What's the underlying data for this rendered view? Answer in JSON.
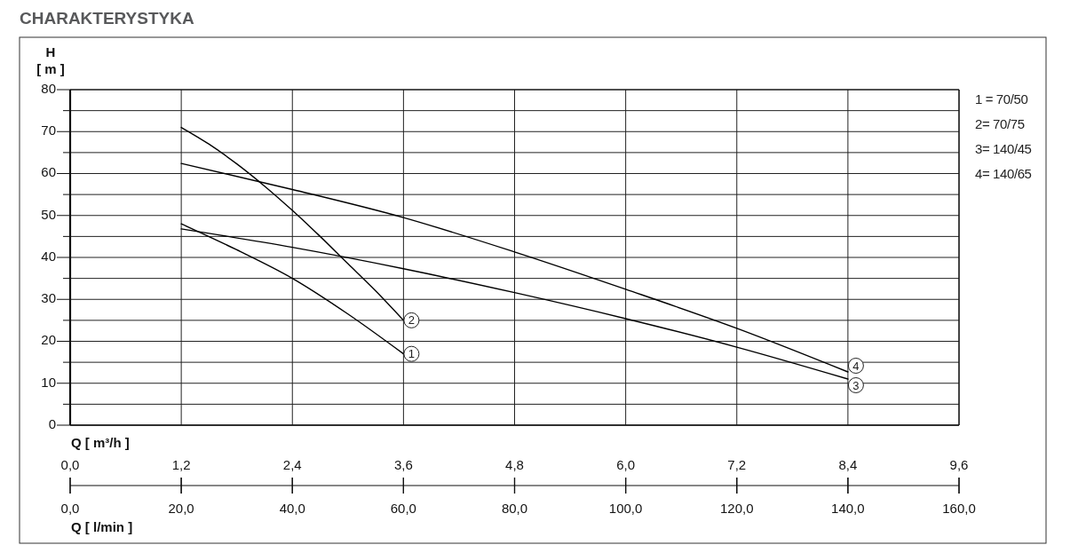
{
  "chart_data": {
    "type": "line",
    "title": "CHARAKTERYSTYKA",
    "xlabel": "Q [ l/min ]",
    "x2label": "Q [ m³/h ]",
    "ylabel": "H\n[ m ]",
    "xlim": [
      0,
      160
    ],
    "xticks": [
      {
        "value": 0,
        "label": "0,0"
      },
      {
        "value": 20,
        "label": "20,0"
      },
      {
        "value": 40,
        "label": "40,0"
      },
      {
        "value": 60,
        "label": "60,0"
      },
      {
        "value": 80,
        "label": "80,0"
      },
      {
        "value": 100,
        "label": "100,0"
      },
      {
        "value": 120,
        "label": "120,0"
      },
      {
        "value": 140,
        "label": "140,0"
      },
      {
        "value": 160,
        "label": "160,0"
      }
    ],
    "x2lim": [
      0,
      9.6
    ],
    "x2ticks": [
      {
        "value": 0,
        "label": "0,0"
      },
      {
        "value": 1.2,
        "label": "1,2"
      },
      {
        "value": 2.4,
        "label": "2,4"
      },
      {
        "value": 3.6,
        "label": "3,6"
      },
      {
        "value": 4.8,
        "label": "4,8"
      },
      {
        "value": 6,
        "label": "6,0"
      },
      {
        "value": 7.2,
        "label": "7,2"
      },
      {
        "value": 8.4,
        "label": "8,4"
      },
      {
        "value": 9.6,
        "label": "9,6"
      }
    ],
    "ylim": [
      0,
      80
    ],
    "yticks": [
      0,
      {
        "value": 5,
        "label": null
      },
      10,
      {
        "value": 15,
        "label": null
      },
      20,
      {
        "value": 25,
        "label": null
      },
      30,
      {
        "value": 35,
        "label": null
      },
      40,
      {
        "value": 45,
        "label": null
      },
      50,
      {
        "value": 55,
        "label": null
      },
      60,
      {
        "value": 65,
        "label": null
      },
      70,
      {
        "value": 75,
        "label": null
      },
      80
    ],
    "grid": true,
    "line_style": "solid",
    "series": [
      {
        "name": "1",
        "color": "#000000",
        "x": [
          20,
          30,
          40,
          50,
          60
        ],
        "values": [
          48,
          41.8,
          35,
          26.5,
          17
        ]
      },
      {
        "name": "2",
        "color": "#000000",
        "x": [
          20,
          25,
          30,
          35,
          40,
          45,
          50,
          55,
          60
        ],
        "values": [
          71,
          67,
          62.3,
          57,
          51.2,
          45,
          38.5,
          32,
          25
        ]
      },
      {
        "name": "3",
        "color": "#000000",
        "x": [
          20,
          40,
          60,
          80,
          100,
          120,
          140
        ],
        "values": [
          46.8,
          42.4,
          37.3,
          31.6,
          25.4,
          18.6,
          11
        ]
      },
      {
        "name": "4",
        "color": "#000000",
        "x": [
          20,
          40,
          60,
          80,
          100,
          120,
          140
        ],
        "values": [
          62.4,
          56.2,
          49.5,
          41.3,
          32.4,
          23.1,
          12.7
        ]
      }
    ],
    "annotations": [
      "1 = 70/50",
      "2= 70/75",
      "3= 140/45",
      "4= 140/65"
    ]
  }
}
